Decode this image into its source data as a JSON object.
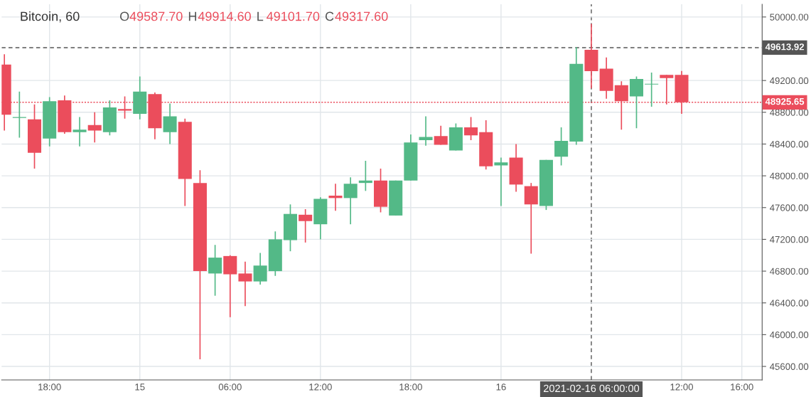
{
  "chart_data": {
    "type": "candlestick",
    "title": "Bitcoin, 60",
    "annotations": [
      "O49587.70",
      "H49914.60",
      "L49101.70",
      "C49317.60"
    ],
    "x": [
      "2021-02-14T15:00",
      "2021-02-14T16:00",
      "2021-02-14T17:00",
      "2021-02-14T18:00",
      "2021-02-14T19:00",
      "2021-02-14T20:00",
      "2021-02-14T21:00",
      "2021-02-14T22:00",
      "2021-02-14T23:00",
      "2021-02-15T00:00",
      "2021-02-15T01:00",
      "2021-02-15T02:00",
      "2021-02-15T03:00",
      "2021-02-15T04:00",
      "2021-02-15T05:00",
      "2021-02-15T06:00",
      "2021-02-15T07:00",
      "2021-02-15T08:00",
      "2021-02-15T09:00",
      "2021-02-15T10:00",
      "2021-02-15T11:00",
      "2021-02-15T12:00",
      "2021-02-15T13:00",
      "2021-02-15T14:00",
      "2021-02-15T15:00",
      "2021-02-15T16:00",
      "2021-02-15T17:00",
      "2021-02-15T18:00",
      "2021-02-15T19:00",
      "2021-02-15T20:00",
      "2021-02-15T21:00",
      "2021-02-15T22:00",
      "2021-02-15T23:00",
      "2021-02-16T00:00",
      "2021-02-16T01:00",
      "2021-02-16T02:00",
      "2021-02-16T03:00",
      "2021-02-16T04:00",
      "2021-02-16T05:00",
      "2021-02-16T06:00",
      "2021-02-16T07:00",
      "2021-02-16T08:00",
      "2021-02-16T09:00",
      "2021-02-16T10:00",
      "2021-02-16T11:00",
      "2021-02-16T12:00"
    ],
    "ohlc": [
      [
        49400,
        49530,
        48570,
        48770
      ],
      [
        48730,
        49060,
        48480,
        48740
      ],
      [
        48710,
        48900,
        48090,
        48290
      ],
      [
        48470,
        48990,
        48370,
        48940
      ],
      [
        48950,
        49010,
        48530,
        48550
      ],
      [
        48550,
        48740,
        48370,
        48580
      ],
      [
        48640,
        48800,
        48420,
        48570
      ],
      [
        48550,
        48950,
        48510,
        48860
      ],
      [
        48840,
        49000,
        48720,
        48820
      ],
      [
        48780,
        49250,
        48710,
        49060
      ],
      [
        49030,
        49050,
        48460,
        48600
      ],
      [
        48550,
        48910,
        48400,
        48750
      ],
      [
        48680,
        48720,
        47620,
        47960
      ],
      [
        47910,
        48070,
        45690,
        46800
      ],
      [
        46770,
        47130,
        46490,
        46970
      ],
      [
        46990,
        47000,
        46220,
        46760
      ],
      [
        46770,
        46920,
        46360,
        46670
      ],
      [
        46670,
        47030,
        46630,
        46870
      ],
      [
        46800,
        47300,
        46740,
        47200
      ],
      [
        47190,
        47640,
        47050,
        47520
      ],
      [
        47510,
        47580,
        47160,
        47430
      ],
      [
        47390,
        47730,
        47200,
        47710
      ],
      [
        47750,
        47900,
        47560,
        47720
      ],
      [
        47720,
        47980,
        47390,
        47900
      ],
      [
        47910,
        48190,
        47810,
        47940
      ],
      [
        47940,
        48090,
        47540,
        47610
      ],
      [
        47500,
        47940,
        47500,
        47940
      ],
      [
        47940,
        48520,
        47940,
        48420
      ],
      [
        48450,
        48750,
        48380,
        48490
      ],
      [
        48500,
        48630,
        48390,
        48390
      ],
      [
        48320,
        48660,
        48320,
        48610
      ],
      [
        48610,
        48740,
        48450,
        48510
      ],
      [
        48550,
        48700,
        48080,
        48120
      ],
      [
        48130,
        48230,
        47620,
        48170
      ],
      [
        48230,
        48400,
        47800,
        47890
      ],
      [
        47870,
        47910,
        47020,
        47640
      ],
      [
        47620,
        48200,
        47570,
        48200
      ],
      [
        48240,
        48610,
        48130,
        48440
      ],
      [
        48430,
        49620,
        48390,
        49410
      ],
      [
        49587.7,
        49914.6,
        49101.7,
        49317.6
      ],
      [
        49350,
        49490,
        48970,
        49070
      ],
      [
        49140,
        49190,
        48580,
        48940
      ],
      [
        49000,
        49250,
        48600,
        49220
      ],
      [
        49150,
        49300,
        48870,
        49160
      ],
      [
        49270,
        49270,
        48900,
        49230
      ],
      [
        49270,
        49320,
        48780,
        48925.65
      ]
    ],
    "colors": [
      "#eb4d5c",
      "#53b987",
      "#eb4d5c",
      "#53b987",
      "#eb4d5c",
      "#53b987",
      "#eb4d5c",
      "#53b987",
      "#eb4d5c",
      "#53b987",
      "#eb4d5c",
      "#53b987",
      "#eb4d5c",
      "#eb4d5c",
      "#53b987",
      "#eb4d5c",
      "#eb4d5c",
      "#53b987",
      "#53b987",
      "#53b987",
      "#eb4d5c",
      "#53b987",
      "#eb4d5c",
      "#53b987",
      "#53b987",
      "#eb4d5c",
      "#53b987",
      "#53b987",
      "#53b987",
      "#eb4d5c",
      "#53b987",
      "#eb4d5c",
      "#eb4d5c",
      "#53b987",
      "#eb4d5c",
      "#eb4d5c",
      "#53b987",
      "#53b987",
      "#53b987",
      "#eb4d5c",
      "#eb4d5c",
      "#eb4d5c",
      "#53b987",
      "#53b987",
      "#eb4d5c",
      "#eb4d5c"
    ],
    "xlim": [
      "2021-02-14T14:49",
      "2021-02-16T17:21"
    ],
    "xticks": [
      {
        "value": "2021-02-14T18:00",
        "label": "18:00"
      },
      {
        "value": "2021-02-15T00:00",
        "label": "15"
      },
      {
        "value": "2021-02-15T06:00",
        "label": "06:00"
      },
      {
        "value": "2021-02-15T12:00",
        "label": "12:00"
      },
      {
        "value": "2021-02-15T18:00",
        "label": "18:00"
      },
      {
        "value": "2021-02-16T00:00",
        "label": "16"
      },
      {
        "value": "2021-02-16T12:00",
        "label": "12:00"
      },
      {
        "value": "2021-02-16T16:00",
        "label": "16:00"
      }
    ],
    "ylim": [
      45430,
      50160
    ],
    "yticks": [
      {
        "value": 45600,
        "label": "45600.00"
      },
      {
        "value": 46000,
        "label": "46000.00"
      },
      {
        "value": 46400,
        "label": "46400.00"
      },
      {
        "value": 46800,
        "label": "46800.00"
      },
      {
        "value": 47200,
        "label": "47200.00"
      },
      {
        "value": 47600,
        "label": "47600.00"
      },
      {
        "value": 48000,
        "label": "48000.00"
      },
      {
        "value": 48400,
        "label": "48400.00"
      },
      {
        "value": 48800,
        "label": "48800.00"
      },
      {
        "value": 49200,
        "label": "49200.00"
      },
      {
        "value": 50000,
        "label": "50000.00"
      }
    ],
    "ref_lines": [
      {
        "axis": "y",
        "value": 49613.92,
        "label": "49613.92",
        "color": "#555555",
        "line_style": "dashed"
      },
      {
        "axis": "y",
        "value": 48925.65,
        "label": "48925.65",
        "color": "#eb4d5c",
        "line_style": "dotted"
      },
      {
        "axis": "x",
        "value": "2021-02-16T06:00",
        "label": "2021-02-16 06:00:00",
        "color": "#555555",
        "line_style": "dashed"
      }
    ],
    "grid": true
  }
}
